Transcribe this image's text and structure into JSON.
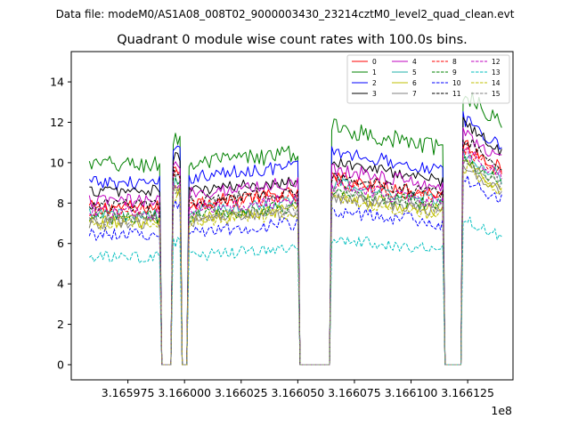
{
  "figure": {
    "suptitle": "Data file: modeM0/AS1A08_008T02_9000003430_23214cztM0_level2_quad_clean.evt"
  },
  "chart_data": {
    "type": "line",
    "title": "Quadrant 0 module wise count rates with 100.0s bins.",
    "xlabel": "",
    "ylabel": "",
    "x_offset_label": "1e8",
    "xlim": [
      3.16595,
      3.166145
    ],
    "ylim": [
      -0.75,
      15.5
    ],
    "x_ticks": [
      3.165975,
      3.166,
      3.166025,
      3.16605,
      3.166075,
      3.1661,
      3.166125
    ],
    "x_tick_labels": [
      "3.165975",
      "3.166000",
      "3.166025",
      "3.166050",
      "3.166075",
      "3.166100",
      "3.166125"
    ],
    "y_ticks": [
      0,
      2,
      4,
      6,
      8,
      10,
      12,
      14
    ],
    "y_tick_labels": [
      "0",
      "2",
      "4",
      "6",
      "8",
      "10",
      "12",
      "14"
    ],
    "grid": false,
    "legend_position": "top-right",
    "legend_columns": 4,
    "time_segments": [
      {
        "start": 3.165958,
        "end": 3.165989
      },
      {
        "start": 3.165995,
        "end": 3.165998
      },
      {
        "start": 3.166002,
        "end": 3.16605
      },
      {
        "start": 3.166065,
        "end": 3.166114
      },
      {
        "start": 3.166123,
        "end": 3.16614
      }
    ],
    "series": [
      {
        "name": "0",
        "color": "#ff0000",
        "dash": "solid",
        "levels": [
          7.8,
          9.6,
          8.0,
          8.6,
          11.0
        ],
        "noise": 0.35
      },
      {
        "name": "1",
        "color": "#008000",
        "dash": "solid",
        "levels": [
          9.9,
          11.2,
          9.9,
          10.9,
          13.5
        ],
        "noise": 0.45
      },
      {
        "name": "2",
        "color": "#0000ff",
        "dash": "solid",
        "levels": [
          9.0,
          10.5,
          9.3,
          9.8,
          12.2
        ],
        "noise": 0.35
      },
      {
        "name": "3",
        "color": "#000000",
        "dash": "solid",
        "levels": [
          8.6,
          10.3,
          8.6,
          9.3,
          12.0
        ],
        "noise": 0.3
      },
      {
        "name": "4",
        "color": "#bf00bf",
        "dash": "solid",
        "levels": [
          8.1,
          9.8,
          8.5,
          9.0,
          11.5
        ],
        "noise": 0.35
      },
      {
        "name": "5",
        "color": "#20b2aa",
        "dash": "solid",
        "levels": [
          7.4,
          9.0,
          7.6,
          8.3,
          10.5
        ],
        "noise": 0.35
      },
      {
        "name": "6",
        "color": "#bfbf00",
        "dash": "solid",
        "levels": [
          7.1,
          8.6,
          7.2,
          7.8,
          10.0
        ],
        "noise": 0.35
      },
      {
        "name": "7",
        "color": "#808080",
        "dash": "solid",
        "levels": [
          7.0,
          8.5,
          7.1,
          7.7,
          9.8
        ],
        "noise": 0.3
      },
      {
        "name": "8",
        "color": "#ff0000",
        "dash": "dashed",
        "levels": [
          7.6,
          9.3,
          7.9,
          8.4,
          10.8
        ],
        "noise": 0.35
      },
      {
        "name": "9",
        "color": "#008000",
        "dash": "dashed",
        "levels": [
          7.3,
          8.9,
          7.4,
          8.0,
          10.2
        ],
        "noise": 0.35
      },
      {
        "name": "10",
        "color": "#0000ff",
        "dash": "dashed",
        "levels": [
          6.5,
          7.8,
          6.6,
          7.1,
          9.2
        ],
        "noise": 0.35
      },
      {
        "name": "11",
        "color": "#000000",
        "dash": "dashed",
        "levels": [
          7.9,
          9.6,
          8.1,
          8.6,
          11.2
        ],
        "noise": 0.3
      },
      {
        "name": "12",
        "color": "#bf00bf",
        "dash": "dashed",
        "levels": [
          7.5,
          9.1,
          7.7,
          8.2,
          10.6
        ],
        "noise": 0.35
      },
      {
        "name": "13",
        "color": "#00bfbf",
        "dash": "dashed",
        "levels": [
          5.3,
          6.1,
          5.4,
          5.8,
          7.2
        ],
        "noise": 0.3
      },
      {
        "name": "14",
        "color": "#bfbf00",
        "dash": "dashed",
        "levels": [
          7.0,
          8.4,
          7.1,
          7.6,
          9.8
        ],
        "noise": 0.35
      },
      {
        "name": "15",
        "color": "#808080",
        "dash": "dashed",
        "levels": [
          7.2,
          8.7,
          7.3,
          7.9,
          10.1
        ],
        "noise": 0.3
      }
    ]
  }
}
